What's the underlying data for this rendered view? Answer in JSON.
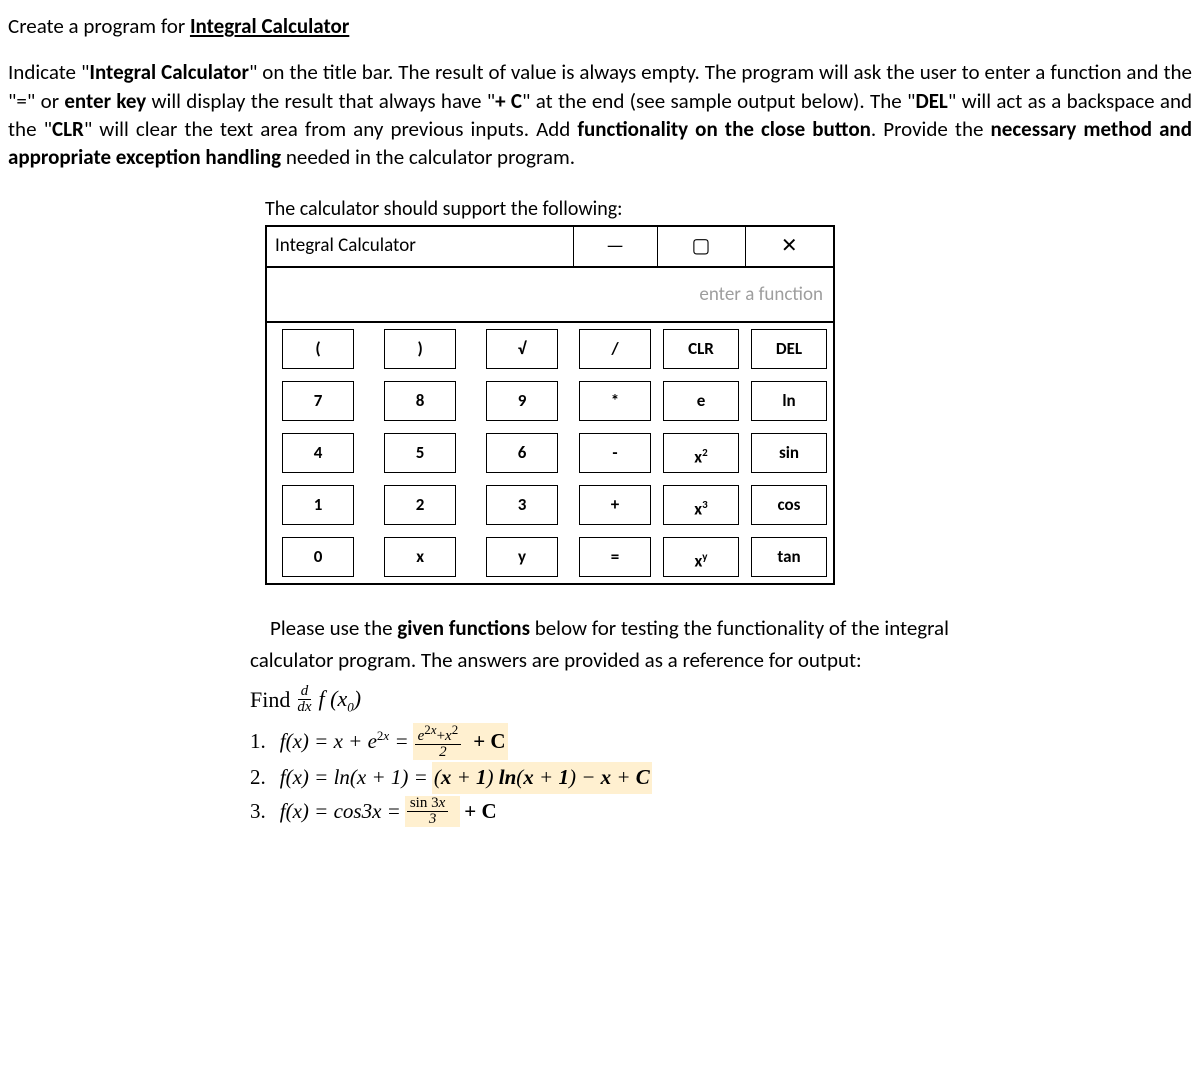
{
  "heading_prefix": "Create a program for ",
  "heading_ul": "Integral Calculator",
  "para_parts": {
    "p1": "Indicate \"",
    "p1b": "Integral Calculator",
    "p2": "\" on the title bar. The result of value is always empty. The program will ask the user to enter a function and the \"=\" or ",
    "p2b": "enter key",
    "p3": " will display the result that always have \"",
    "p3b": "+ C",
    "p4": "\" at the end (see sample output below). The \"",
    "p4b": "DEL",
    "p5": "\" will act as a backspace and the \"",
    "p5b": "CLR",
    "p6": "\" will clear the text area from any previous inputs. Add ",
    "p6b": "functionality on the close button",
    "p7": ". Provide the ",
    "p7b": "necessary method and appropriate exception handling",
    "p8": " needed in the calculator program."
  },
  "support_caption": "The calculator should support the following:",
  "calc": {
    "title": "Integral Calculator",
    "minimize": "—",
    "maximize": "▢",
    "close": "✕",
    "placeholder": "enter a function",
    "rows": [
      [
        "(",
        ")",
        "√",
        "/",
        "CLR",
        "DEL"
      ],
      [
        "7",
        "8",
        "9",
        "*",
        "e",
        "ln"
      ],
      [
        "4",
        "5",
        "6",
        "-",
        "x²",
        "sin"
      ],
      [
        "1",
        "2",
        "3",
        "+",
        "x³",
        "cos"
      ],
      [
        "0",
        "x",
        "y",
        "=",
        "xʸ",
        "tan"
      ]
    ]
  },
  "testing": {
    "intro1": "Please use the ",
    "intro1b": "given functions",
    "intro2": " below for testing the functionality of the integral calculator program. The answers are provided as a reference for output:",
    "find_label": "Find",
    "frac_num": "d",
    "frac_den": "dx",
    "find_fx": "f (x₀)",
    "examples": [
      {
        "num": "1.",
        "lhs": "f(x) = x + e",
        "lhs_exp": "2x",
        "eq": " = ",
        "rhs_frac_num": "e",
        "rhs_frac_num_exp": "2x",
        "rhs_frac_num2": "+x",
        "rhs_frac_num2_exp": "2",
        "rhs_frac_den": "2",
        "rhs_tail": " + C"
      },
      {
        "num": "2.",
        "lhs": "f(x) = ln(x + 1) = ",
        "rhs": "(x + 1) ln(x + 1) − x + C"
      },
      {
        "num": "3.",
        "lhs": "f(x) = cos3x = ",
        "rhs_frac_num": "sin 3x",
        "rhs_frac_den": "3",
        "rhs_tail": " + C"
      }
    ]
  }
}
